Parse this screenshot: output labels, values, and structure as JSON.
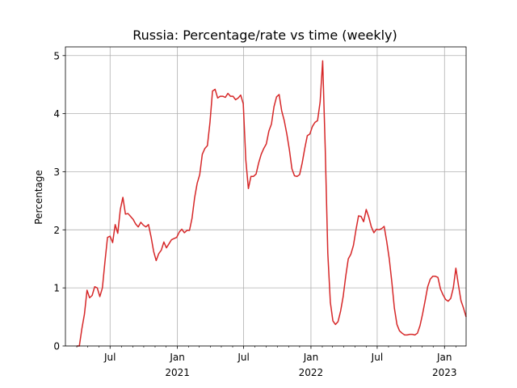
{
  "chart_data": {
    "type": "line",
    "title": "Russia: Percentage/rate vs time (weekly)",
    "xlabel": "",
    "ylabel": "Percentage",
    "ylim": [
      0,
      5.15
    ],
    "xlim": [
      "2020-03-01",
      "2023-03-01"
    ],
    "grid": true,
    "color": "#d62728",
    "yticks": [
      0,
      1,
      2,
      3,
      4,
      5
    ],
    "xticks": [
      {
        "date": "2020-07-01",
        "label": "Jul",
        "year": ""
      },
      {
        "date": "2021-01-01",
        "label": "Jan",
        "year": "2021"
      },
      {
        "date": "2021-07-01",
        "label": "Jul",
        "year": ""
      },
      {
        "date": "2022-01-01",
        "label": "Jan",
        "year": "2022"
      },
      {
        "date": "2022-07-01",
        "label": "Jul",
        "year": ""
      },
      {
        "date": "2023-01-01",
        "label": "Jan",
        "year": "2023"
      }
    ],
    "minor_ticks": [
      "2020-04-01",
      "2020-05-01",
      "2020-06-01",
      "2020-08-01",
      "2020-09-01",
      "2020-10-01",
      "2020-11-01",
      "2020-12-01",
      "2021-02-01",
      "2021-03-01",
      "2021-04-01",
      "2021-05-01",
      "2021-06-01",
      "2021-08-01",
      "2021-09-01",
      "2021-10-01",
      "2021-11-01",
      "2021-12-01",
      "2022-02-01",
      "2022-03-01",
      "2022-04-01",
      "2022-05-01",
      "2022-06-01",
      "2022-08-01",
      "2022-09-01",
      "2022-10-01",
      "2022-11-01",
      "2022-12-01",
      "2023-02-01"
    ],
    "series": [
      {
        "points": [
          [
            "2020-04-01",
            0.0
          ],
          [
            "2020-04-08",
            0.0
          ],
          [
            "2020-04-15",
            0.3
          ],
          [
            "2020-04-22",
            0.55
          ],
          [
            "2020-04-29",
            0.96
          ],
          [
            "2020-05-06",
            0.83
          ],
          [
            "2020-05-13",
            0.87
          ],
          [
            "2020-05-20",
            1.02
          ],
          [
            "2020-05-27",
            1.0
          ],
          [
            "2020-06-03",
            0.85
          ],
          [
            "2020-06-10",
            1.0
          ],
          [
            "2020-06-17",
            1.45
          ],
          [
            "2020-06-24",
            1.87
          ],
          [
            "2020-07-01",
            1.89
          ],
          [
            "2020-07-08",
            1.78
          ],
          [
            "2020-07-15",
            2.09
          ],
          [
            "2020-07-22",
            1.94
          ],
          [
            "2020-07-29",
            2.35
          ],
          [
            "2020-08-05",
            2.56
          ],
          [
            "2020-08-12",
            2.27
          ],
          [
            "2020-08-19",
            2.28
          ],
          [
            "2020-08-26",
            2.23
          ],
          [
            "2020-09-02",
            2.18
          ],
          [
            "2020-09-09",
            2.1
          ],
          [
            "2020-09-16",
            2.05
          ],
          [
            "2020-09-23",
            2.13
          ],
          [
            "2020-09-30",
            2.08
          ],
          [
            "2020-10-07",
            2.05
          ],
          [
            "2020-10-14",
            2.09
          ],
          [
            "2020-10-21",
            1.88
          ],
          [
            "2020-10-28",
            1.63
          ],
          [
            "2020-11-04",
            1.47
          ],
          [
            "2020-11-11",
            1.59
          ],
          [
            "2020-11-18",
            1.65
          ],
          [
            "2020-11-25",
            1.79
          ],
          [
            "2020-12-02",
            1.69
          ],
          [
            "2020-12-09",
            1.76
          ],
          [
            "2020-12-16",
            1.83
          ],
          [
            "2020-12-23",
            1.85
          ],
          [
            "2020-12-30",
            1.87
          ],
          [
            "2021-01-06",
            1.96
          ],
          [
            "2021-01-13",
            2.01
          ],
          [
            "2021-01-20",
            1.95
          ],
          [
            "2021-01-27",
            1.99
          ],
          [
            "2021-02-03",
            1.99
          ],
          [
            "2021-02-10",
            2.2
          ],
          [
            "2021-02-17",
            2.55
          ],
          [
            "2021-02-24",
            2.8
          ],
          [
            "2021-03-03",
            2.95
          ],
          [
            "2021-03-10",
            3.3
          ],
          [
            "2021-03-17",
            3.4
          ],
          [
            "2021-03-24",
            3.45
          ],
          [
            "2021-03-31",
            3.85
          ],
          [
            "2021-04-07",
            4.39
          ],
          [
            "2021-04-14",
            4.42
          ],
          [
            "2021-04-21",
            4.27
          ],
          [
            "2021-04-28",
            4.3
          ],
          [
            "2021-05-05",
            4.3
          ],
          [
            "2021-05-12",
            4.28
          ],
          [
            "2021-05-19",
            4.35
          ],
          [
            "2021-05-26",
            4.3
          ],
          [
            "2021-06-02",
            4.3
          ],
          [
            "2021-06-09",
            4.24
          ],
          [
            "2021-06-16",
            4.27
          ],
          [
            "2021-06-23",
            4.32
          ],
          [
            "2021-06-30",
            4.17
          ],
          [
            "2021-07-07",
            3.2
          ],
          [
            "2021-07-14",
            2.71
          ],
          [
            "2021-07-21",
            2.92
          ],
          [
            "2021-07-28",
            2.92
          ],
          [
            "2021-08-04",
            2.96
          ],
          [
            "2021-08-11",
            3.15
          ],
          [
            "2021-08-18",
            3.3
          ],
          [
            "2021-08-25",
            3.4
          ],
          [
            "2021-09-01",
            3.48
          ],
          [
            "2021-09-08",
            3.7
          ],
          [
            "2021-09-15",
            3.82
          ],
          [
            "2021-09-22",
            4.12
          ],
          [
            "2021-09-29",
            4.29
          ],
          [
            "2021-10-06",
            4.33
          ],
          [
            "2021-10-13",
            4.05
          ],
          [
            "2021-10-20",
            3.88
          ],
          [
            "2021-10-27",
            3.65
          ],
          [
            "2021-11-03",
            3.38
          ],
          [
            "2021-11-10",
            3.05
          ],
          [
            "2021-11-17",
            2.93
          ],
          [
            "2021-11-24",
            2.92
          ],
          [
            "2021-12-01",
            2.95
          ],
          [
            "2021-12-08",
            3.15
          ],
          [
            "2021-12-15",
            3.4
          ],
          [
            "2021-12-22",
            3.62
          ],
          [
            "2021-12-29",
            3.65
          ],
          [
            "2022-01-05",
            3.78
          ],
          [
            "2022-01-12",
            3.85
          ],
          [
            "2022-01-19",
            3.88
          ],
          [
            "2022-01-26",
            4.2
          ],
          [
            "2022-02-02",
            4.91
          ],
          [
            "2022-02-09",
            3.4
          ],
          [
            "2022-02-16",
            1.6
          ],
          [
            "2022-02-23",
            0.75
          ],
          [
            "2022-03-02",
            0.43
          ],
          [
            "2022-03-09",
            0.37
          ],
          [
            "2022-03-16",
            0.42
          ],
          [
            "2022-03-23",
            0.6
          ],
          [
            "2022-03-30",
            0.85
          ],
          [
            "2022-04-06",
            1.2
          ],
          [
            "2022-04-13",
            1.5
          ],
          [
            "2022-04-20",
            1.58
          ],
          [
            "2022-04-27",
            1.73
          ],
          [
            "2022-05-04",
            2.0
          ],
          [
            "2022-05-11",
            2.24
          ],
          [
            "2022-05-18",
            2.23
          ],
          [
            "2022-05-25",
            2.14
          ],
          [
            "2022-06-01",
            2.35
          ],
          [
            "2022-06-08",
            2.22
          ],
          [
            "2022-06-15",
            2.05
          ],
          [
            "2022-06-22",
            1.95
          ],
          [
            "2022-06-29",
            2.01
          ],
          [
            "2022-07-06",
            2.0
          ],
          [
            "2022-07-13",
            2.02
          ],
          [
            "2022-07-20",
            2.06
          ],
          [
            "2022-07-27",
            1.8
          ],
          [
            "2022-08-03",
            1.5
          ],
          [
            "2022-08-10",
            1.1
          ],
          [
            "2022-08-17",
            0.65
          ],
          [
            "2022-08-24",
            0.37
          ],
          [
            "2022-08-31",
            0.26
          ],
          [
            "2022-09-07",
            0.22
          ],
          [
            "2022-09-14",
            0.19
          ],
          [
            "2022-09-21",
            0.19
          ],
          [
            "2022-09-28",
            0.2
          ],
          [
            "2022-10-05",
            0.2
          ],
          [
            "2022-10-12",
            0.19
          ],
          [
            "2022-10-19",
            0.22
          ],
          [
            "2022-10-26",
            0.35
          ],
          [
            "2022-11-02",
            0.55
          ],
          [
            "2022-11-09",
            0.78
          ],
          [
            "2022-11-16",
            1.02
          ],
          [
            "2022-11-23",
            1.15
          ],
          [
            "2022-11-30",
            1.2
          ],
          [
            "2022-12-07",
            1.2
          ],
          [
            "2022-12-14",
            1.18
          ],
          [
            "2022-12-21",
            0.98
          ],
          [
            "2022-12-28",
            0.88
          ],
          [
            "2023-01-04",
            0.8
          ],
          [
            "2023-01-11",
            0.77
          ],
          [
            "2023-01-18",
            0.82
          ],
          [
            "2023-01-25",
            1.0
          ],
          [
            "2023-02-01",
            1.34
          ],
          [
            "2023-02-08",
            1.05
          ],
          [
            "2023-02-15",
            0.78
          ],
          [
            "2023-02-22",
            0.65
          ],
          [
            "2023-03-01",
            0.5
          ]
        ]
      }
    ]
  }
}
